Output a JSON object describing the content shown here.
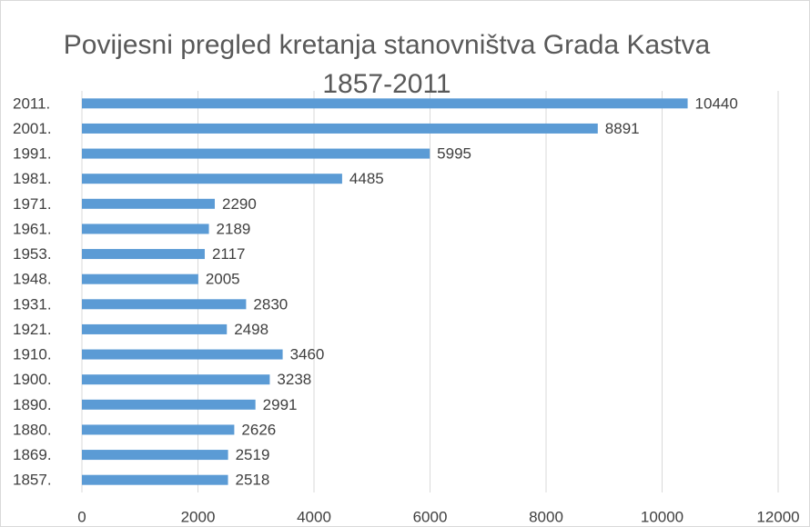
{
  "chart_data": {
    "type": "bar",
    "orientation": "horizontal",
    "title": "Povijesni pregled kretanja stanovništva Grada Kastva 1857-2011",
    "categories": [
      "2011.",
      "2001.",
      "1991.",
      "1981.",
      "1971.",
      "1961.",
      "1953.",
      "1948.",
      "1931.",
      "1921.",
      "1910.",
      "1900.",
      "1890.",
      "1880.",
      "1869.",
      "1857."
    ],
    "values": [
      10440,
      8891,
      5995,
      4485,
      2290,
      2189,
      2117,
      2005,
      2830,
      2498,
      3460,
      3238,
      2991,
      2626,
      2519,
      2518
    ],
    "color": "#5b9bd5",
    "xlim": [
      0,
      12000
    ],
    "xticks": [
      0,
      2000,
      4000,
      6000,
      8000,
      10000,
      12000
    ],
    "grid": true
  }
}
